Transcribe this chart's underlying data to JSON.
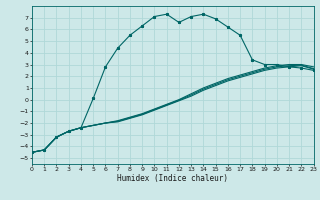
{
  "xlabel": "Humidex (Indice chaleur)",
  "background_color": "#cde8e8",
  "grid_color": "#b0d8d8",
  "line_color": "#006666",
  "xlim": [
    0,
    23
  ],
  "ylim": [
    -5.5,
    8
  ],
  "xticks": [
    0,
    1,
    2,
    3,
    4,
    5,
    6,
    7,
    8,
    9,
    10,
    11,
    12,
    13,
    14,
    15,
    16,
    17,
    18,
    19,
    20,
    21,
    22,
    23
  ],
  "yticks": [
    -5,
    -4,
    -3,
    -2,
    -1,
    0,
    1,
    2,
    3,
    4,
    5,
    6,
    7
  ],
  "curve1_x": [
    0,
    1,
    2,
    3,
    4,
    5,
    6,
    7,
    8,
    9,
    10,
    11,
    12,
    13,
    14,
    15,
    16,
    17,
    18,
    19,
    20,
    21,
    22,
    23
  ],
  "curve1_y": [
    -4.5,
    -4.3,
    -3.2,
    -2.7,
    -2.4,
    0.1,
    2.8,
    4.4,
    5.5,
    6.3,
    7.1,
    7.3,
    6.6,
    7.1,
    7.3,
    6.9,
    6.2,
    5.5,
    3.4,
    3.0,
    3.0,
    2.8,
    2.7,
    2.5
  ],
  "curve2_x": [
    0,
    1,
    2,
    3,
    4,
    5,
    6,
    7,
    8,
    9,
    10,
    11,
    12,
    13,
    14,
    15,
    16,
    17,
    18,
    19,
    20,
    21,
    22,
    23
  ],
  "curve2_y": [
    -4.5,
    -4.3,
    -3.2,
    -2.7,
    -2.4,
    -2.2,
    -2.0,
    -1.8,
    -1.5,
    -1.2,
    -0.8,
    -0.4,
    0.0,
    0.5,
    1.0,
    1.4,
    1.8,
    2.1,
    2.4,
    2.7,
    2.9,
    3.0,
    3.0,
    2.8
  ],
  "curve3_x": [
    0,
    1,
    2,
    3,
    4,
    5,
    6,
    7,
    8,
    9,
    10,
    11,
    12,
    13,
    14,
    15,
    16,
    17,
    18,
    19,
    20,
    21,
    22,
    23
  ],
  "curve3_y": [
    -4.5,
    -4.3,
    -3.2,
    -2.7,
    -2.4,
    -2.2,
    -2.0,
    -1.85,
    -1.55,
    -1.25,
    -0.85,
    -0.45,
    -0.05,
    0.4,
    0.9,
    1.3,
    1.7,
    2.0,
    2.3,
    2.6,
    2.8,
    2.9,
    2.95,
    2.65
  ],
  "curve4_x": [
    0,
    1,
    2,
    3,
    4,
    5,
    6,
    7,
    8,
    9,
    10,
    11,
    12,
    13,
    14,
    15,
    16,
    17,
    18,
    19,
    20,
    21,
    22,
    23
  ],
  "curve4_y": [
    -4.5,
    -4.3,
    -3.2,
    -2.7,
    -2.4,
    -2.2,
    -2.0,
    -1.9,
    -1.6,
    -1.3,
    -0.9,
    -0.5,
    -0.1,
    0.3,
    0.8,
    1.2,
    1.6,
    1.9,
    2.2,
    2.5,
    2.7,
    2.8,
    2.9,
    2.6
  ]
}
